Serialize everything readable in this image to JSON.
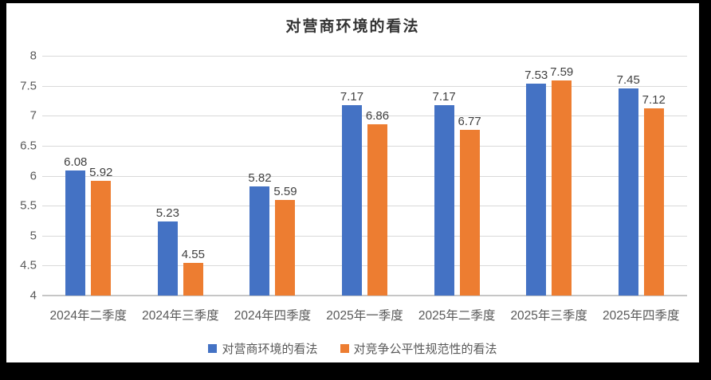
{
  "chart_data": {
    "type": "bar",
    "title": "对营商环境的看法",
    "categories": [
      "2024年二季度",
      "2024年三季度",
      "2024年四季度",
      "2025年一季度",
      "2025年二季度",
      "2025年三季度",
      "2025年四季度"
    ],
    "series": [
      {
        "name": "对营商环境的看法",
        "color": "#4472C4",
        "values": [
          6.08,
          5.23,
          5.82,
          7.17,
          7.17,
          7.53,
          7.45
        ],
        "labels": [
          "6.08",
          "5.23",
          "5.82",
          "7.17",
          "7.17",
          "7.53",
          "7.45"
        ]
      },
      {
        "name": "对竞争公平性规范性的看法",
        "color": "#ED7D31",
        "values": [
          5.92,
          4.55,
          5.59,
          6.86,
          6.77,
          7.59,
          7.12
        ],
        "labels": [
          "5.92",
          "4.55",
          "5.59",
          "6.86",
          "6.77",
          "7.59",
          "7.12"
        ]
      }
    ],
    "ylim": [
      4,
      8
    ],
    "yticks": [
      8,
      7.5,
      7,
      6.5,
      6,
      5.5,
      5,
      4.5,
      4
    ],
    "ytick_labels": [
      "8",
      "7.5",
      "7",
      "6.5",
      "6",
      "5.5",
      "5",
      "4.5",
      "4"
    ],
    "grid": true,
    "data_labels": true,
    "legend_position": "bottom",
    "xlabel": "",
    "ylabel": ""
  },
  "colors": {
    "series1": "#4472C4",
    "series2": "#ED7D31",
    "gridline": "#D9D9D9",
    "axis_line": "#C6C6C6",
    "tick_text": "#595959",
    "data_label_text": "#404040",
    "title_text": "#333333",
    "chart_bg": "#FFFFFF",
    "frame_bg": "#000000"
  }
}
